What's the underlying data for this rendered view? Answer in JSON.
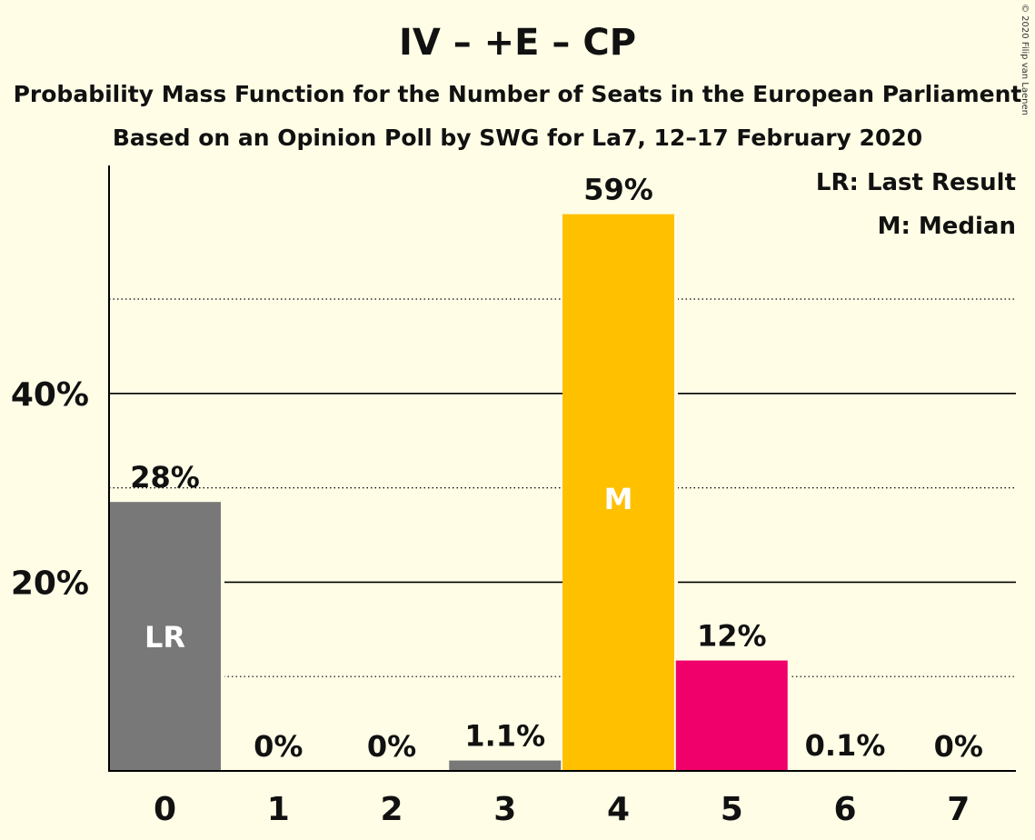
{
  "title": "IV – +E – CP",
  "subtitle": "Probability Mass Function for the Number of Seats in the European Parliament",
  "source_line": "Based on an Opinion Poll by SWG for La7, 12–17 February 2020",
  "copyright": "© 2020 Filip van Laenen",
  "legend": {
    "lr": "LR: Last Result",
    "m": "M: Median",
    "placement": "top-right"
  },
  "colors": {
    "background": "#FFFDE6",
    "last_result_bar": "#787878",
    "median_bar": "#FFC000",
    "highlight_bar": "#F0006A",
    "other_bar": "#787878"
  },
  "chart_data": {
    "type": "bar",
    "categories": [
      "0",
      "1",
      "2",
      "3",
      "4",
      "5",
      "6",
      "7"
    ],
    "values": [
      28.5,
      0,
      0,
      1.1,
      59,
      11.7,
      0.1,
      0
    ],
    "value_labels": [
      "28%",
      "0%",
      "0%",
      "1.1%",
      "59%",
      "12%",
      "0.1%",
      "0%"
    ],
    "bar_markers": [
      "LR",
      "",
      "",
      "",
      "M",
      "",
      "",
      ""
    ],
    "bar_colors": [
      "#787878",
      "#787878",
      "#787878",
      "#787878",
      "#FFC000",
      "#F0006A",
      "#787878",
      "#787878"
    ],
    "y_ticks": [
      20,
      40
    ],
    "y_tick_labels": [
      "20%",
      "40%"
    ],
    "y_minor_gridlines": [
      10,
      30,
      50
    ],
    "ylim": [
      0,
      64
    ],
    "xlabel": "",
    "ylabel": "",
    "grid": true
  }
}
